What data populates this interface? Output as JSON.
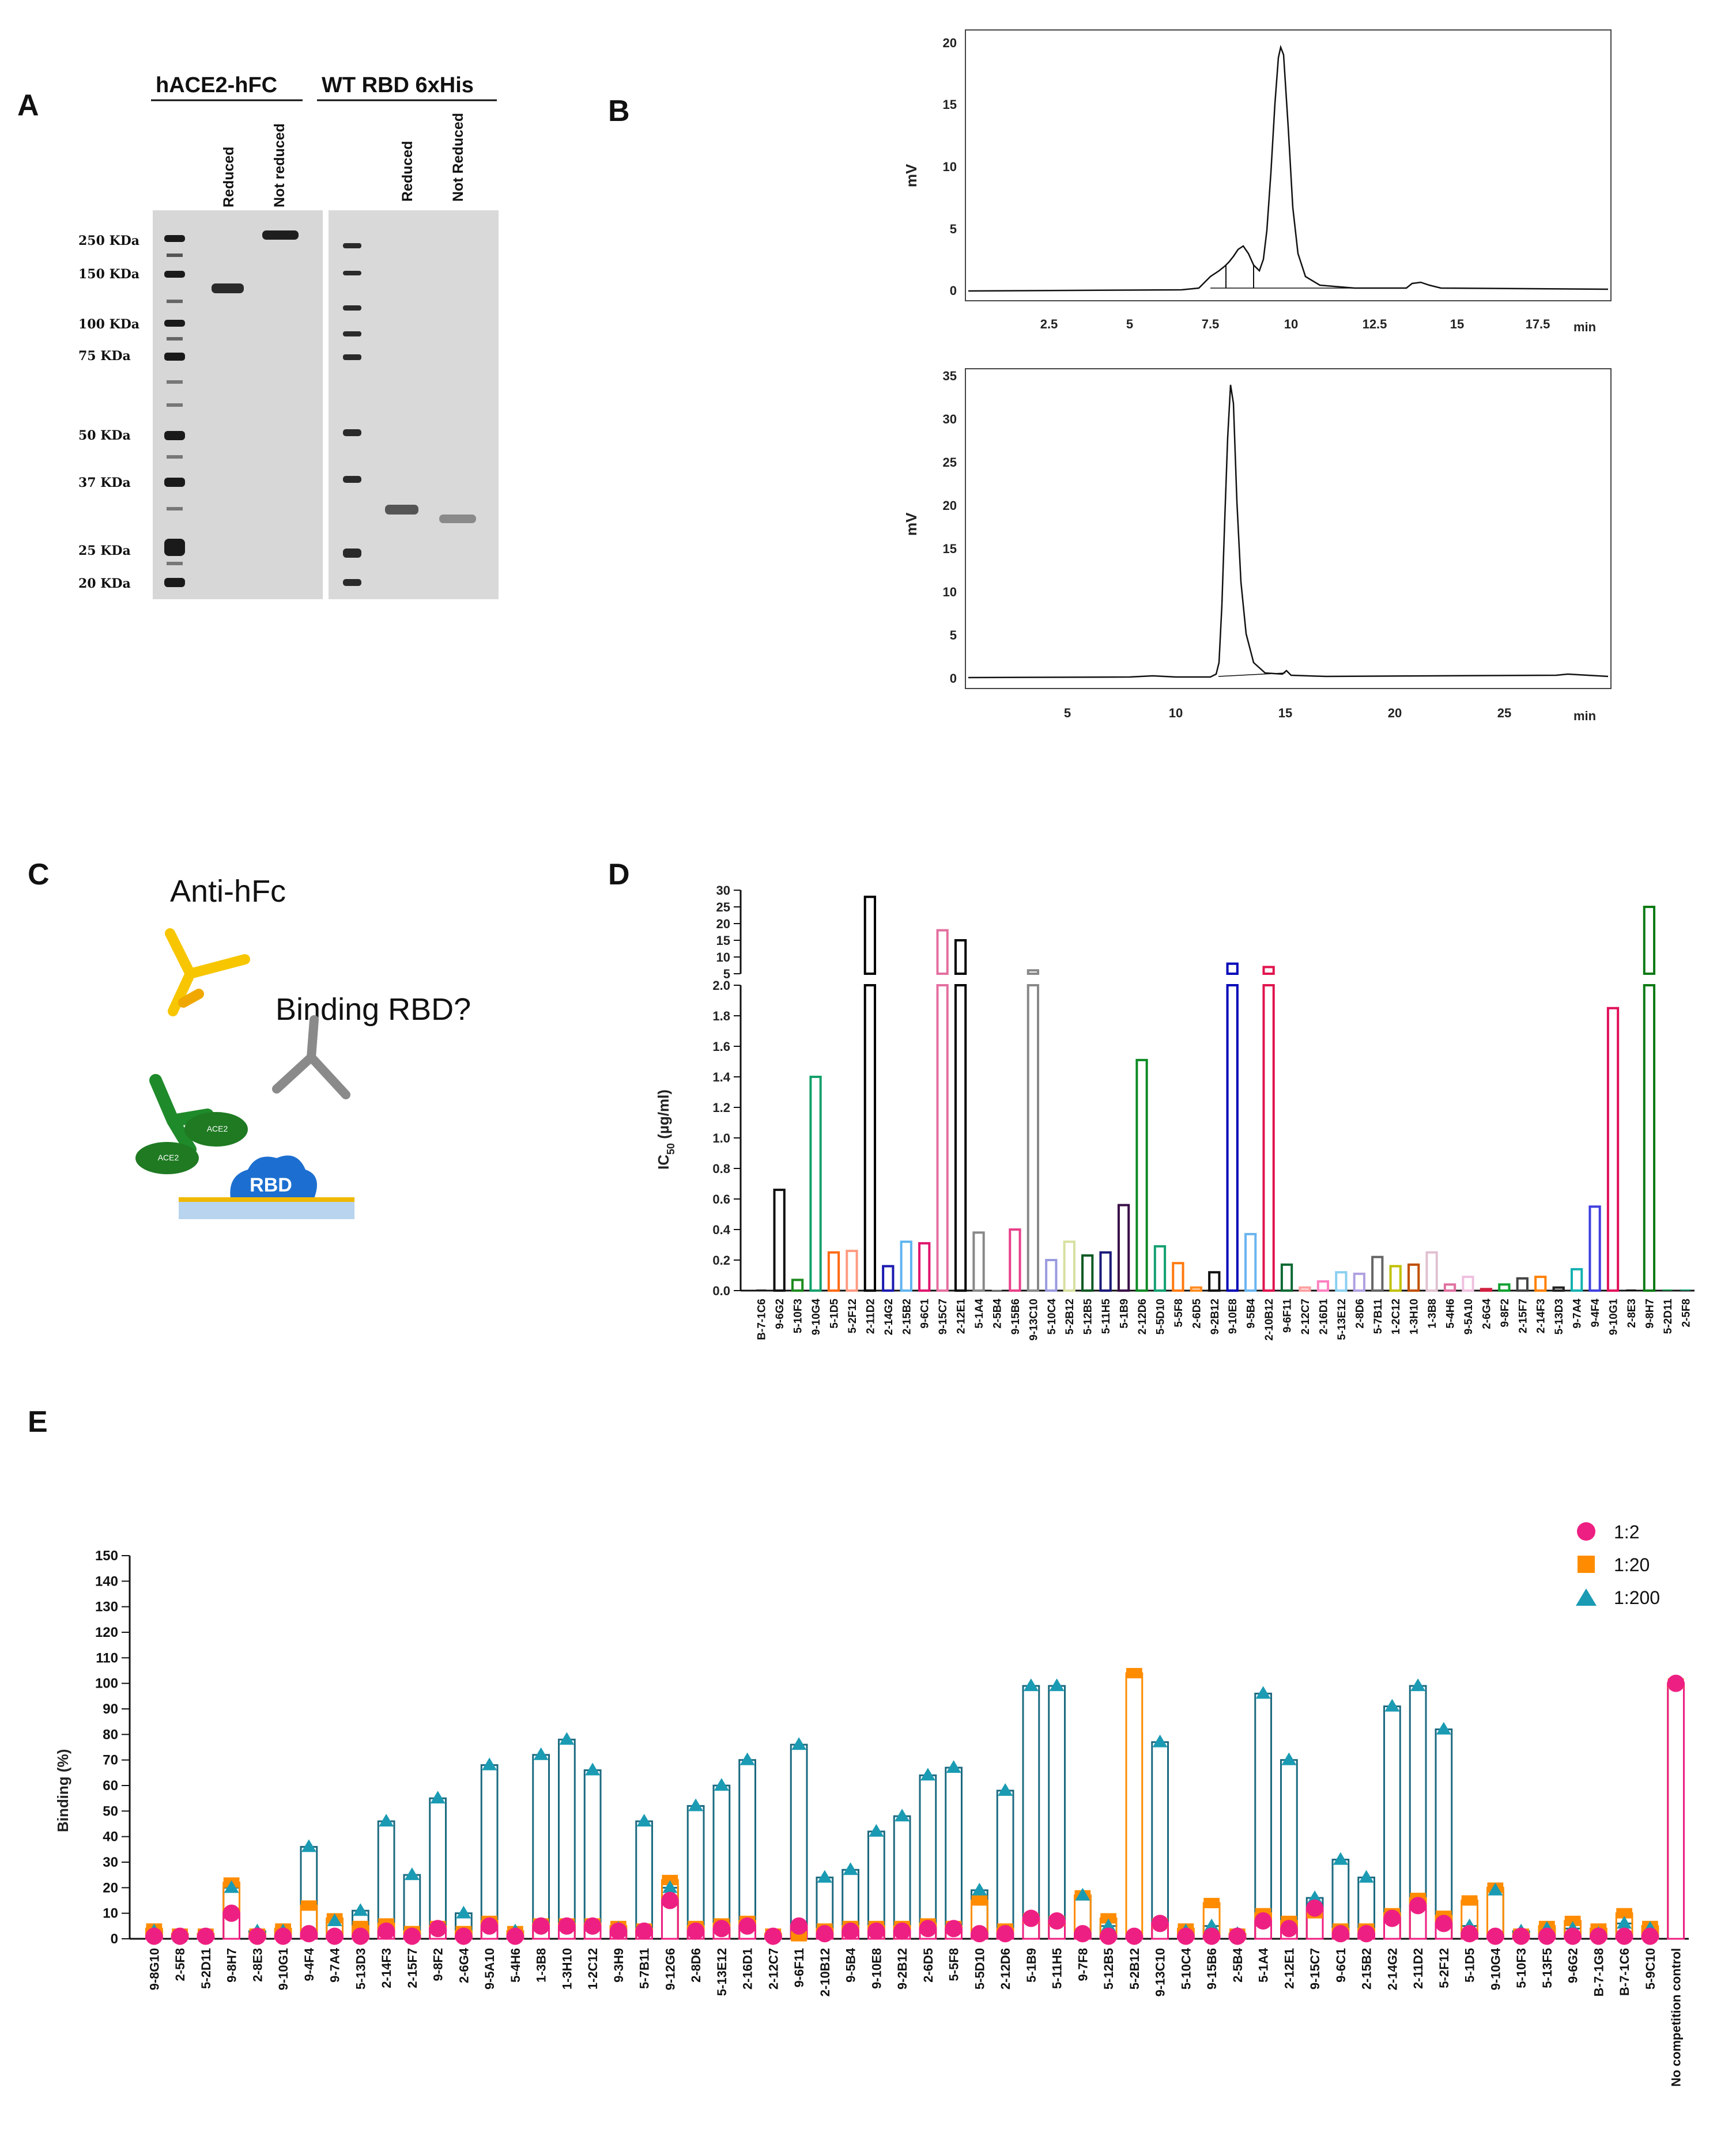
{
  "panels": {
    "A": {
      "label": "A",
      "gel_left_title": "hACE2-hFC",
      "gel_right_title": "WT RBD 6xHis",
      "lane_labels_left": [
        "Reduced",
        "Not reduced"
      ],
      "lane_labels_right": [
        "Reduced",
        "Not Reduced"
      ],
      "markers": [
        "250 KDa",
        "150 KDa",
        "100 KDa",
        "75 KDa",
        "50 KDa",
        "37 KDa",
        "25 KDa",
        "20 KDa"
      ]
    },
    "B": {
      "label": "B",
      "chromatograms": [
        {
          "y_label": "mV",
          "x_unit": "min",
          "x_ticks": [
            "2.5",
            "5",
            "7.5",
            "10",
            "12.5",
            "15",
            "17.5"
          ],
          "y_ticks": [
            "0",
            "5",
            "10",
            "15",
            "20"
          ]
        },
        {
          "y_label": "mV",
          "x_unit": "min",
          "x_ticks": [
            "5",
            "10",
            "15",
            "20",
            "25"
          ],
          "y_ticks": [
            "0",
            "5",
            "10",
            "15",
            "20",
            "25",
            "30",
            "35"
          ]
        }
      ]
    },
    "C": {
      "label": "C",
      "title": "Anti-hFc",
      "question": "Binding RBD?",
      "rbd_label": "RBD",
      "ace2_label": "ACE2"
    },
    "D": {
      "label": "D",
      "y_label_prefix": "IC",
      "y_label_sub": "50",
      "y_label_suffix": " (µg/ml)"
    },
    "E": {
      "label": "E",
      "y_label": "Binding (%)",
      "legend": [
        "1:2",
        "1:20",
        "1:200"
      ]
    }
  },
  "colors": {
    "pink": "#ee1f82",
    "orange": "#ff8c00",
    "teal": "#1a9bb3",
    "tealDark": "#1b6a80"
  },
  "chart_data": [
    {
      "panel": "D",
      "type": "bar",
      "title": "",
      "ylabel": "IC50 (µg/ml)",
      "y_axis_lower": {
        "range": [
          0,
          2.0
        ],
        "ticks": [
          0,
          0.2,
          0.4,
          0.6,
          0.8,
          1.0,
          1.2,
          1.4,
          1.6,
          1.8,
          2.0
        ]
      },
      "y_axis_upper": {
        "range": [
          5,
          30
        ],
        "ticks": [
          5,
          10,
          15,
          20,
          25,
          30
        ]
      },
      "categories": [
        "B-7-1C6",
        "9-6G2",
        "5-10F3",
        "9-10G4",
        "5-1D5",
        "5-2F12",
        "2-11D2",
        "2-14G2",
        "2-15B2",
        "9-6C1",
        "9-15C7",
        "2-12E1",
        "5-1A4",
        "2-5B4",
        "9-15B6",
        "9-13C10",
        "5-10C4",
        "5-2B12",
        "5-12B5",
        "5-11H5",
        "5-1B9",
        "2-12D6",
        "5-5D10",
        "5-5F8",
        "2-6D5",
        "9-2B12",
        "9-10E8",
        "9-5B4",
        "2-10B12",
        "9-6F11",
        "2-12C7",
        "2-16D1",
        "5-13E12",
        "2-8D6",
        "5-7B11",
        "1-2C12",
        "1-3H10",
        "1-3B8",
        "5-4H6",
        "9-5A10",
        "2-6G4",
        "9-8F2",
        "2-15F7",
        "2-14F3",
        "5-13D3",
        "9-7A4",
        "9-4F4",
        "9-10G1",
        "2-8E3",
        "9-8H7",
        "5-2D11",
        "2-5F8"
      ],
      "values": [
        0,
        0.66,
        0.07,
        1.4,
        0.25,
        0.26,
        28,
        0.16,
        0.32,
        0.31,
        18,
        15,
        0.38,
        0,
        0.4,
        6,
        0.2,
        0.32,
        0.23,
        0.25,
        0.56,
        1.51,
        0.29,
        0.18,
        0.02,
        0.12,
        8,
        0.37,
        7,
        0.17,
        0.02,
        0.06,
        0.12,
        0.11,
        0.22,
        0.16,
        0.17,
        0.25,
        0.04,
        0.09,
        0.01,
        0.04,
        0.08,
        0.09,
        0.02,
        0.14,
        0.55,
        1.85,
        0,
        25,
        0,
        0
      ],
      "bar_colors": [
        "#222222",
        "#111111",
        "#1c8a1c",
        "#14a06a",
        "#ff6a13",
        "#ff9a80",
        "#000000",
        "#1a1ab0",
        "#5fb4f0",
        "#e0146e",
        "#e46fa0",
        "#000000",
        "#888888",
        "#bbbbbb",
        "#e8408a",
        "#888888",
        "#9a9ae0",
        "#d8e0a0",
        "#0c5a24",
        "#1a1a7a",
        "#3a1048",
        "#0c8a24",
        "#14a070",
        "#ff7a10",
        "#ff8c20",
        "#111111",
        "#0000b8",
        "#6ab4f0",
        "#e0144e",
        "#0c6a34",
        "#ffa0a0",
        "#ff80c0",
        "#8ad0f0",
        "#b0a0e0",
        "#666666",
        "#c0c000",
        "#c05000",
        "#e0c0d0",
        "#e070a0",
        "#f0c0e0",
        "#d02040",
        "#10a030",
        "#444444",
        "#ff8000",
        "#222222",
        "#14b0b0",
        "#4040e0",
        "#e0105a",
        "#111111",
        "#0c7a14",
        "#14a050",
        "#14a070"
      ]
    },
    {
      "panel": "E",
      "type": "bar",
      "title": "",
      "ylabel": "Binding (%)",
      "ylim": [
        0,
        150
      ],
      "y_ticks": [
        0,
        10,
        20,
        30,
        40,
        50,
        60,
        70,
        80,
        90,
        100,
        110,
        120,
        130,
        140,
        150
      ],
      "categories": [
        "9-8G10",
        "2-5F8",
        "5-2D11",
        "9-8H7",
        "2-8E3",
        "9-10G1",
        "9-4F4",
        "9-7A4",
        "5-13D3",
        "2-14F3",
        "2-15F7",
        "9-8F2",
        "2-6G4",
        "9-5A10",
        "5-4H6",
        "1-3B8",
        "1-3H10",
        "1-2C12",
        "9-3H9",
        "5-7B11",
        "9-12G6",
        "2-8D6",
        "5-13E12",
        "2-16D1",
        "2-12C7",
        "9-6F11",
        "2-10B12",
        "9-5B4",
        "9-10E8",
        "9-2B12",
        "2-6D5",
        "5-5F8",
        "5-5D10",
        "2-12D6",
        "5-1B9",
        "5-11H5",
        "9-7F8",
        "5-12B5",
        "5-2B12",
        "9-13C10",
        "5-10C4",
        "9-15B6",
        "2-5B4",
        "5-1A4",
        "2-12E1",
        "9-15C7",
        "9-6C1",
        "2-15B2",
        "2-14G2",
        "2-11D2",
        "5-2F12",
        "5-1D5",
        "9-10G4",
        "5-10F3",
        "5-13F5",
        "9-6G2",
        "B-7-1G8",
        "B-7-1C6",
        "5-9C10",
        "No competition control"
      ],
      "series": [
        {
          "name": "1:2",
          "values": [
            1,
            1,
            1,
            10,
            1,
            1,
            2,
            1,
            1,
            3,
            1,
            4,
            1,
            5,
            1,
            5,
            5,
            5,
            3,
            3,
            15,
            3,
            4,
            5,
            1,
            5,
            2,
            3,
            3,
            3,
            4,
            4,
            2,
            2,
            8,
            7,
            2,
            1,
            1,
            6,
            1,
            1,
            1,
            7,
            4,
            12,
            2,
            2,
            8,
            13,
            6,
            2,
            1,
            1,
            1,
            1,
            1,
            1,
            1,
            100
          ]
        },
        {
          "name": "1:20",
          "values": [
            4,
            2,
            2,
            22,
            2,
            4,
            13,
            8,
            5,
            6,
            3,
            5,
            3,
            7,
            3,
            6,
            6,
            6,
            5,
            4,
            23,
            5,
            6,
            7,
            2,
            1,
            4,
            5,
            5,
            5,
            6,
            5,
            15,
            4,
            8,
            7,
            17,
            8,
            104,
            6,
            4,
            14,
            2,
            10,
            7,
            10,
            4,
            4,
            10,
            16,
            9,
            15,
            20,
            2,
            5,
            7,
            4,
            10,
            5,
            100
          ]
        },
        {
          "name": "1:200",
          "values": [
            3,
            1,
            1,
            20,
            3,
            3,
            36,
            7,
            11,
            46,
            25,
            55,
            10,
            68,
            3,
            72,
            78,
            66,
            4,
            46,
            20,
            52,
            60,
            70,
            1,
            76,
            24,
            27,
            42,
            48,
            64,
            67,
            19,
            58,
            99,
            99,
            17,
            5,
            1,
            77,
            3,
            5,
            2,
            96,
            70,
            16,
            31,
            24,
            91,
            99,
            82,
            5,
            19,
            3,
            4,
            4,
            2,
            6,
            4,
            100
          ]
        }
      ]
    }
  ]
}
